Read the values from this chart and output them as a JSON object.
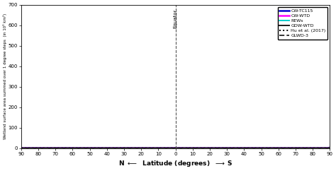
{
  "ylabel": "Wetland surface area summed over 1 degree steps  (in 10³ km²)",
  "ylim": [
    0,
    700
  ],
  "xlim": [
    90,
    -90
  ],
  "xticks": [
    90,
    80,
    70,
    60,
    50,
    40,
    30,
    20,
    10,
    0,
    -10,
    -20,
    -30,
    -40,
    -50,
    -60,
    -70,
    -80,
    -90
  ],
  "xtick_labels": [
    "90",
    "80",
    "70",
    "60",
    "50",
    "40",
    "30",
    "20",
    "10",
    "0",
    "10",
    "20",
    "30",
    "40",
    "50",
    "60",
    "70",
    "80",
    "90"
  ],
  "yticks": [
    0,
    100,
    200,
    300,
    400,
    500,
    600,
    700
  ],
  "legend_labels": [
    "CW-TC115",
    "CW-WTD",
    "REWs",
    "GDW-WTD",
    "Hu et al. (2017)",
    "GLWD-3"
  ],
  "line_colors": [
    "#0000CD",
    "#FF00FF",
    "#00CCCC",
    "#1a1a1a",
    "#000000",
    "#333333"
  ],
  "line_styles": [
    "-",
    "-",
    "-",
    "-",
    ":",
    "--"
  ],
  "line_widths": [
    1.8,
    1.8,
    1.4,
    1.4,
    1.4,
    1.4
  ],
  "equator_x": 0,
  "background_color": "#FFFFFF"
}
